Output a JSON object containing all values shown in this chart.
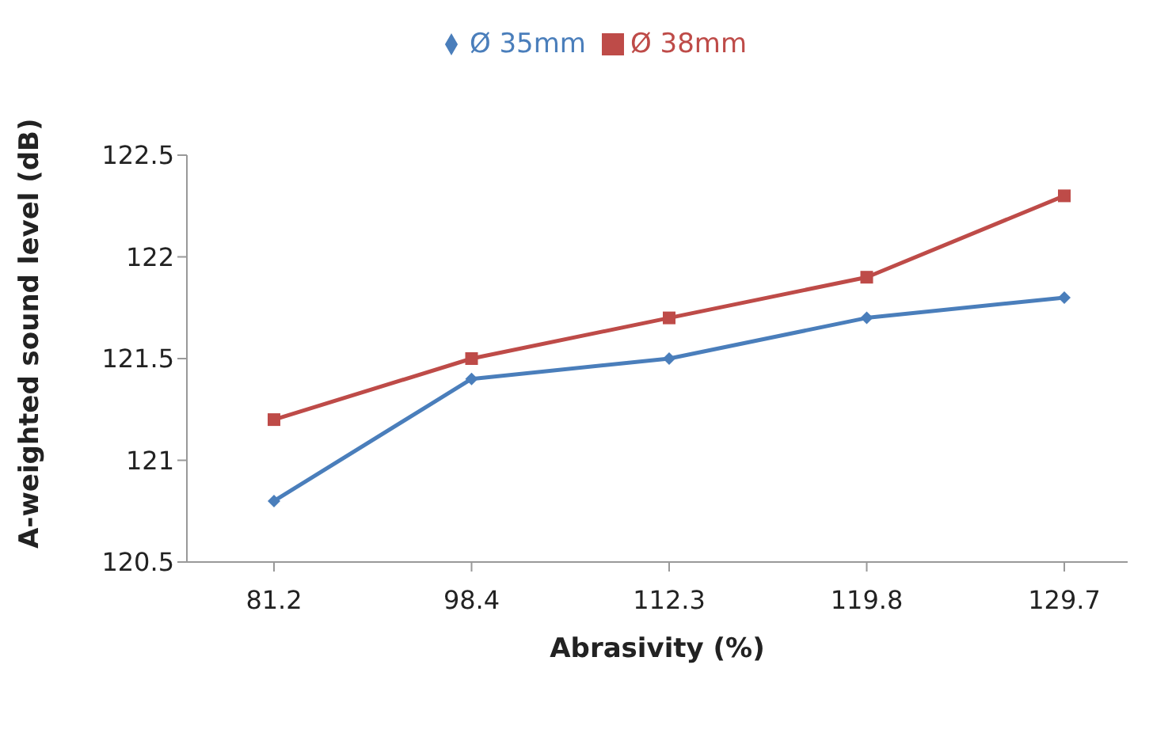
{
  "chart_data": {
    "type": "line",
    "xlabel": "Abrasivity (%)",
    "ylabel": "A-weighted sound level (dB)",
    "categories": [
      "81.2",
      "98.4",
      "112.3",
      "119.8",
      "129.7"
    ],
    "series": [
      {
        "name": "Ø 35mm",
        "color": "#4a7ebb",
        "marker": "diamond",
        "values": [
          120.8,
          121.4,
          121.5,
          121.7,
          121.8
        ]
      },
      {
        "name": "Ø 38mm",
        "color": "#be4b48",
        "marker": "square",
        "values": [
          121.2,
          121.5,
          121.7,
          121.9,
          122.3
        ]
      }
    ],
    "ylim": [
      120.5,
      122.5
    ],
    "yticks": [
      120.5,
      121,
      121.5,
      122,
      122.5
    ],
    "grid": false,
    "legend": "top"
  }
}
